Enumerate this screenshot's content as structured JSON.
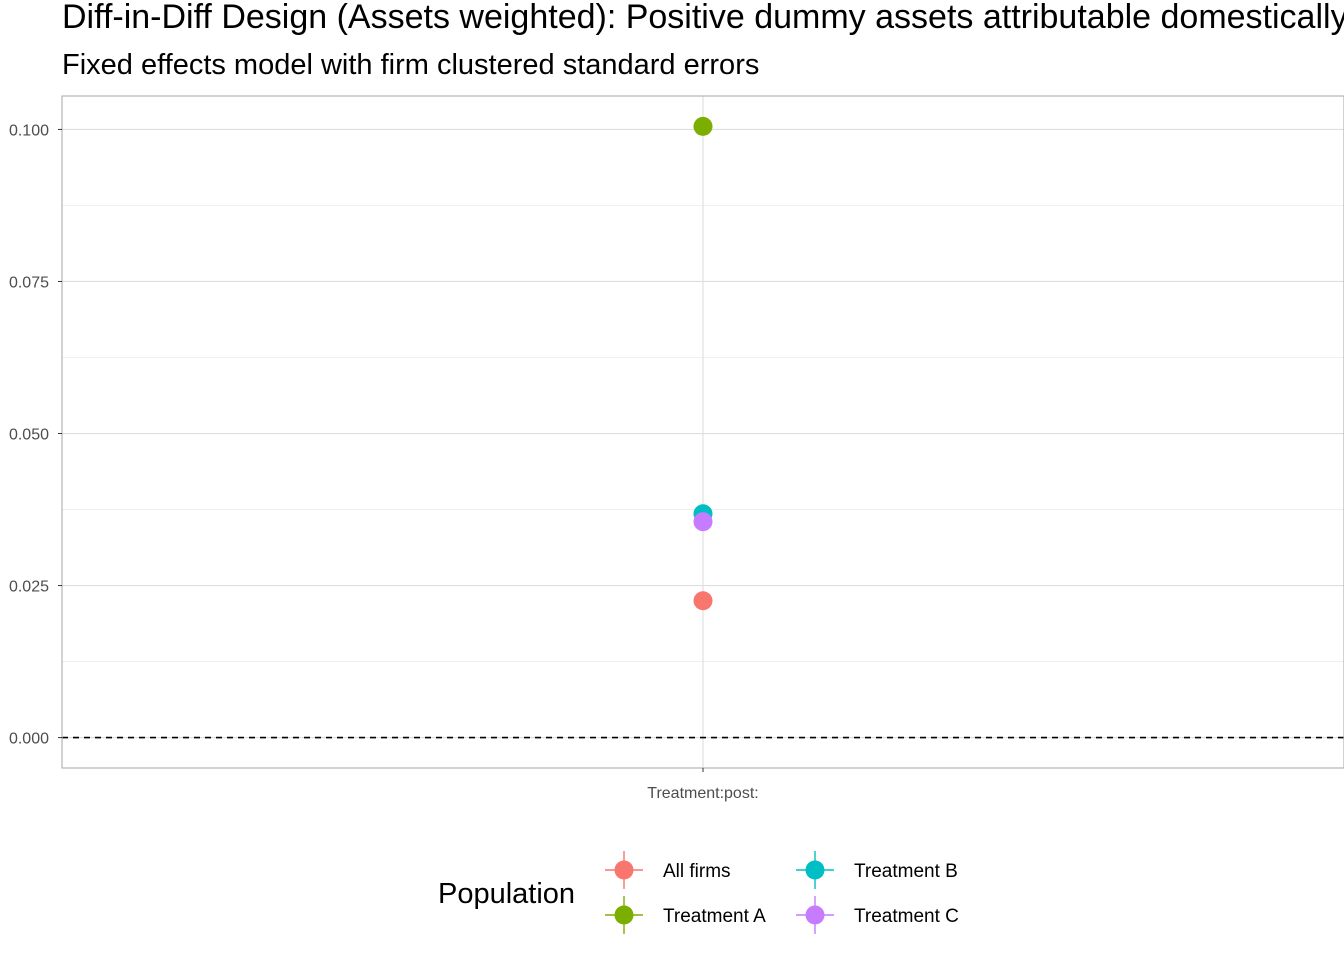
{
  "chart_data": {
    "type": "scatter",
    "title": "Diff-in-Diff Design (Assets weighted): Positive dummy assets attributable domestically",
    "subtitle": "Fixed effects model with firm clustered standard errors",
    "xlabel": "",
    "ylabel": "",
    "categories": [
      "Treatment:post:"
    ],
    "ylim": [
      -0.005,
      0.1055
    ],
    "yticks": [
      0.0,
      0.025,
      0.05,
      0.075,
      0.1
    ],
    "ytick_labels": [
      "0.000",
      "0.025",
      "0.050",
      "0.075",
      "0.100"
    ],
    "grid": true,
    "reference_line": {
      "y": 0,
      "style": "dashed"
    },
    "legend": {
      "title": "Population",
      "placement": "bottom"
    },
    "series": [
      {
        "name": "All firms",
        "color": "#F8766D",
        "values": [
          0.0225
        ]
      },
      {
        "name": "Treatment A",
        "color": "#7CAE00",
        "values": [
          0.1005
        ]
      },
      {
        "name": "Treatment B",
        "color": "#00BFC4",
        "values": [
          0.0368
        ]
      },
      {
        "name": "Treatment C",
        "color": "#C77CFF",
        "values": [
          0.0355
        ]
      }
    ]
  }
}
